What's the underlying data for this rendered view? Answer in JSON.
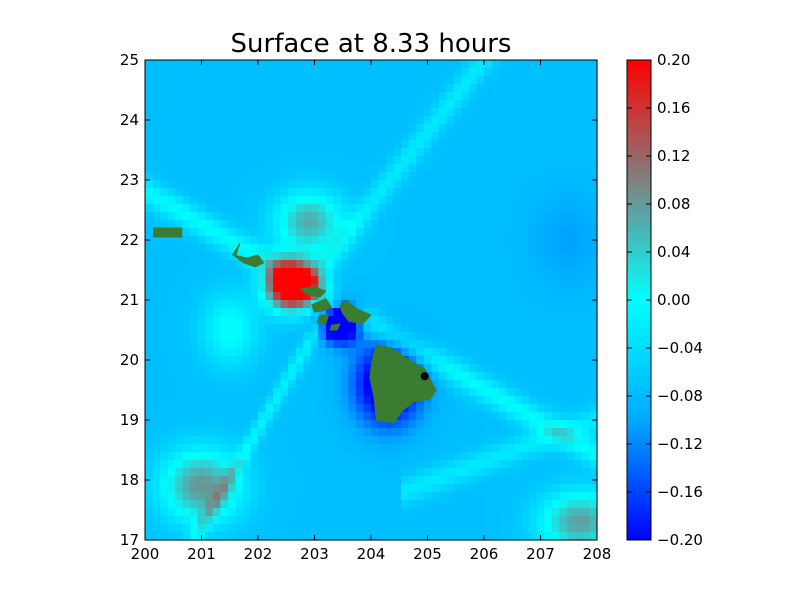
{
  "chart_data": {
    "type": "heatmap",
    "title": "Surface at 8.33 hours",
    "xlabel": "",
    "ylabel": "",
    "xlim": [
      200,
      208
    ],
    "ylim": [
      17,
      25
    ],
    "x_ticks": [
      "200",
      "201",
      "202",
      "203",
      "204",
      "205",
      "206",
      "207",
      "208"
    ],
    "y_ticks": [
      "17",
      "18",
      "19",
      "20",
      "21",
      "22",
      "23",
      "24",
      "25"
    ],
    "grid": false,
    "colorbar": {
      "range": [
        -0.2,
        0.2
      ],
      "ticks": [
        "0.20",
        "0.16",
        "0.12",
        "0.08",
        "0.04",
        "0.00",
        "−0.04",
        "−0.08",
        "−0.12",
        "−0.16",
        "−0.20"
      ],
      "colors": [
        {
          "value": -0.2,
          "color": "#0000ff"
        },
        {
          "value": -0.1,
          "color": "#00aaff"
        },
        {
          "value": 0.0,
          "color": "#00ffff"
        },
        {
          "value": 0.1,
          "color": "#808080"
        },
        {
          "value": 0.2,
          "color": "#ff0000"
        }
      ]
    },
    "land_color": "#3a7c30",
    "marker": {
      "x": 204.95,
      "y": 19.73,
      "color": "#000000"
    },
    "features": [
      {
        "type": "blob",
        "x": 202.6,
        "y": 21.25,
        "sx": 0.42,
        "sy": 0.38,
        "amp": 0.42
      },
      {
        "type": "blob",
        "x": 203.45,
        "y": 20.65,
        "sx": 0.32,
        "sy": 0.32,
        "amp": -0.3
      },
      {
        "type": "blob",
        "x": 204.3,
        "y": 19.6,
        "sx": 0.6,
        "sy": 0.7,
        "amp": -0.18
      },
      {
        "type": "blob",
        "x": 202.9,
        "y": 22.3,
        "sx": 0.6,
        "sy": 0.5,
        "amp": 0.14
      },
      {
        "type": "blob",
        "x": 201.0,
        "y": 17.9,
        "sx": 0.7,
        "sy": 0.6,
        "amp": 0.16
      },
      {
        "type": "blob",
        "x": 207.7,
        "y": 17.3,
        "sx": 0.7,
        "sy": 0.5,
        "amp": 0.15
      },
      {
        "type": "blob",
        "x": 201.5,
        "y": 20.5,
        "sx": 0.5,
        "sy": 0.6,
        "amp": 0.08
      },
      {
        "type": "blob",
        "x": 207.5,
        "y": 22.0,
        "sx": 0.7,
        "sy": 0.8,
        "amp": -0.03
      }
    ],
    "islands": [
      {
        "name": "Kauai",
        "points": [
          [
            201.68,
            21.95
          ],
          [
            201.55,
            21.75
          ],
          [
            201.8,
            21.7
          ],
          [
            202.0,
            21.75
          ],
          [
            202.1,
            21.62
          ],
          [
            201.95,
            21.55
          ],
          [
            201.75,
            21.62
          ],
          [
            201.6,
            21.72
          ]
        ]
      },
      {
        "name": "Oahu",
        "points": [
          [
            202.75,
            21.18
          ],
          [
            202.95,
            21.22
          ],
          [
            203.2,
            21.15
          ],
          [
            203.1,
            21.05
          ],
          [
            202.9,
            21.08
          ]
        ]
      },
      {
        "name": "Molokai",
        "points": [
          [
            202.95,
            20.92
          ],
          [
            203.2,
            21.02
          ],
          [
            203.3,
            20.88
          ],
          [
            203.15,
            20.82
          ],
          [
            203.0,
            20.8
          ]
        ]
      },
      {
        "name": "Maui",
        "points": [
          [
            203.45,
            20.9
          ],
          [
            203.55,
            21.0
          ],
          [
            203.75,
            20.85
          ],
          [
            204.0,
            20.75
          ],
          [
            203.85,
            20.6
          ],
          [
            203.6,
            20.65
          ],
          [
            203.5,
            20.78
          ]
        ]
      },
      {
        "name": "Lanai",
        "points": [
          [
            203.1,
            20.75
          ],
          [
            203.25,
            20.75
          ],
          [
            203.2,
            20.6
          ],
          [
            203.05,
            20.62
          ]
        ]
      },
      {
        "name": "Kahoolawe",
        "points": [
          [
            203.3,
            20.58
          ],
          [
            203.45,
            20.6
          ],
          [
            203.4,
            20.5
          ],
          [
            203.28,
            20.5
          ]
        ]
      },
      {
        "name": "Hawaii",
        "points": [
          [
            204.1,
            20.25
          ],
          [
            204.35,
            20.2
          ],
          [
            204.65,
            20.02
          ],
          [
            204.95,
            19.85
          ],
          [
            205.15,
            19.5
          ],
          [
            205.05,
            19.35
          ],
          [
            204.75,
            19.3
          ],
          [
            204.55,
            19.15
          ],
          [
            204.4,
            18.95
          ],
          [
            204.1,
            19.0
          ],
          [
            204.05,
            19.4
          ],
          [
            203.98,
            19.7
          ],
          [
            204.02,
            20.0
          ]
        ]
      },
      {
        "name": "Niihau-block",
        "points": [
          [
            200.15,
            22.2
          ],
          [
            200.65,
            22.2
          ],
          [
            200.65,
            22.05
          ],
          [
            200.15,
            22.05
          ]
        ]
      }
    ]
  }
}
